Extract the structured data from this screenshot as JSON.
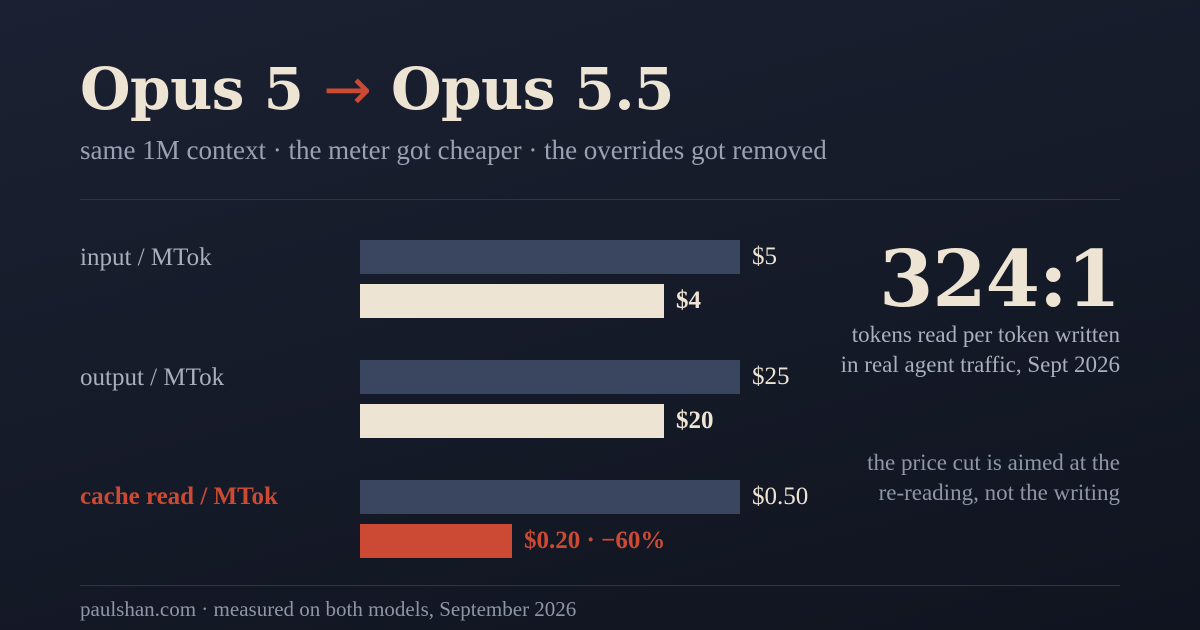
{
  "header": {
    "title_from": "Opus 5",
    "title_arrow": "→",
    "title_to": "Opus 5.5",
    "subtitle": "same 1M context · the meter got cheaper · the overrides got removed"
  },
  "chart_data": {
    "type": "bar",
    "orientation": "horizontal",
    "grid": false,
    "categories": [
      "input / MTok",
      "output / MTok",
      "cache read / MTok"
    ],
    "series": [
      {
        "values": [
          5,
          25,
          0.5
        ],
        "labels": [
          "$5",
          "$25",
          "$0.50"
        ]
      },
      {
        "values": [
          4,
          20,
          0.2
        ],
        "labels": [
          "$4",
          "$20",
          "$0.20 · −60%"
        ]
      }
    ],
    "colors": {
      "old": "#3a4560",
      "new": "#ede4d3",
      "highlight": "#cc4a33"
    },
    "highlight_category": "cache read / MTok"
  },
  "callout": {
    "ratio": "324:1",
    "caption_line1": "tokens read per token written",
    "caption_line2": "in real agent traffic, Sept 2026",
    "note_line1": "the price cut is aimed at the",
    "note_line2": "re-reading, not the writing"
  },
  "footer": {
    "text": "paulshan.com · measured on both models, September 2026"
  },
  "colors": {
    "background": "#151a28",
    "cream": "#ede4d3",
    "accent": "#cc4a33",
    "muted": "#a9afbf"
  }
}
